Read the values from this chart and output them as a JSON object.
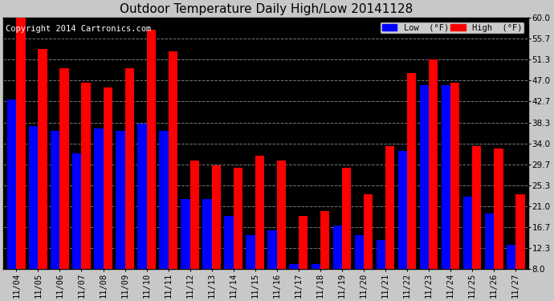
{
  "title": "Outdoor Temperature Daily High/Low 20141128",
  "copyright": "Copyright 2014 Cartronics.com",
  "legend_low": "Low  (°F)",
  "legend_high": "High  (°F)",
  "dates": [
    "11/04",
    "11/05",
    "11/06",
    "11/07",
    "11/08",
    "11/09",
    "11/10",
    "11/11",
    "11/12",
    "11/13",
    "11/14",
    "11/15",
    "11/16",
    "11/17",
    "11/18",
    "11/19",
    "11/20",
    "11/21",
    "11/22",
    "11/23",
    "11/24",
    "11/25",
    "11/26",
    "11/27"
  ],
  "high": [
    60.0,
    53.5,
    49.5,
    46.5,
    45.5,
    49.5,
    57.5,
    53.0,
    30.5,
    29.5,
    29.0,
    31.5,
    30.5,
    19.0,
    20.0,
    29.0,
    23.5,
    33.5,
    48.5,
    51.3,
    46.5,
    33.5,
    33.0,
    23.5
  ],
  "low": [
    43.0,
    37.5,
    36.5,
    32.0,
    37.0,
    36.5,
    38.0,
    36.5,
    22.5,
    22.5,
    19.0,
    15.0,
    16.0,
    9.0,
    9.0,
    17.0,
    15.0,
    14.0,
    32.5,
    46.0,
    46.0,
    23.0,
    19.5,
    13.0
  ],
  "ylim": [
    8.0,
    60.0
  ],
  "yticks": [
    8.0,
    12.3,
    16.7,
    21.0,
    25.3,
    29.7,
    34.0,
    38.3,
    42.7,
    47.0,
    51.3,
    55.7,
    60.0
  ],
  "bg_color": "#000000",
  "fig_bg_color": "#c8c8c8",
  "bar_width": 0.42,
  "low_color": "#0000ff",
  "high_color": "#ff0000",
  "grid_color": "#aaaaaa",
  "title_color": "black",
  "tick_color": "black",
  "text_color": "white",
  "title_fontsize": 11,
  "copyright_fontsize": 7.5,
  "legend_fontsize": 7.5,
  "tick_fontsize": 7.5
}
